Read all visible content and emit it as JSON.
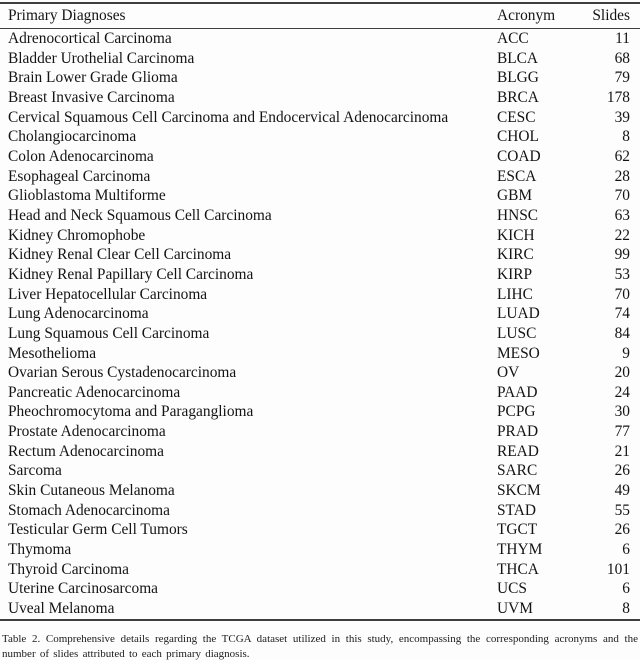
{
  "table": {
    "columns": [
      "Primary Diagnoses",
      "Acronym",
      "Slides"
    ],
    "rows": [
      [
        "Adrenocortical Carcinoma",
        "ACC",
        "11"
      ],
      [
        "Bladder Urothelial Carcinoma",
        "BLCA",
        "68"
      ],
      [
        "Brain Lower Grade Glioma",
        "BLGG",
        "79"
      ],
      [
        "Breast Invasive Carcinoma",
        "BRCA",
        "178"
      ],
      [
        "Cervical Squamous Cell Carcinoma and Endocervical Adenocarcinoma",
        "CESC",
        "39"
      ],
      [
        "Cholangiocarcinoma",
        "CHOL",
        "8"
      ],
      [
        "Colon Adenocarcinoma",
        "COAD",
        "62"
      ],
      [
        "Esophageal Carcinoma",
        "ESCA",
        "28"
      ],
      [
        "Glioblastoma Multiforme",
        "GBM",
        "70"
      ],
      [
        "Head and Neck Squamous Cell Carcinoma",
        "HNSC",
        "63"
      ],
      [
        "Kidney Chromophobe",
        "KICH",
        "22"
      ],
      [
        "Kidney Renal Clear Cell Carcinoma",
        "KIRC",
        "99"
      ],
      [
        "Kidney Renal Papillary Cell Carcinoma",
        "KIRP",
        "53"
      ],
      [
        "Liver Hepatocellular Carcinoma",
        "LIHC",
        "70"
      ],
      [
        "Lung Adenocarcinoma",
        "LUAD",
        "74"
      ],
      [
        "Lung Squamous Cell Carcinoma",
        "LUSC",
        "84"
      ],
      [
        "Mesothelioma",
        "MESO",
        "9"
      ],
      [
        "Ovarian Serous Cystadenocarcinoma",
        "OV",
        "20"
      ],
      [
        "Pancreatic Adenocarcinoma",
        "PAAD",
        "24"
      ],
      [
        "Pheochromocytoma and Paraganglioma",
        "PCPG",
        "30"
      ],
      [
        "Prostate Adenocarcinoma",
        "PRAD",
        "77"
      ],
      [
        "Rectum Adenocarcinoma",
        "READ",
        "21"
      ],
      [
        "Sarcoma",
        "SARC",
        "26"
      ],
      [
        "Skin Cutaneous Melanoma",
        "SKCM",
        "49"
      ],
      [
        "Stomach Adenocarcinoma",
        "STAD",
        "55"
      ],
      [
        "Testicular Germ Cell Tumors",
        "TGCT",
        "26"
      ],
      [
        "Thymoma",
        "THYM",
        "6"
      ],
      [
        "Thyroid Carcinoma",
        "THCA",
        "101"
      ],
      [
        "Uterine Carcinosarcoma",
        "UCS",
        "6"
      ],
      [
        "Uveal Melanoma",
        "UVM",
        "8"
      ]
    ]
  },
  "caption": "Table 2.  Comprehensive details regarding the TCGA dataset utilized in this study, encompassing the corresponding acronyms and the number of slides attributed to each primary diagnosis.",
  "colors": {
    "background": "#fdfdfd",
    "rule": "#3e3e3e",
    "text": "#141414"
  }
}
